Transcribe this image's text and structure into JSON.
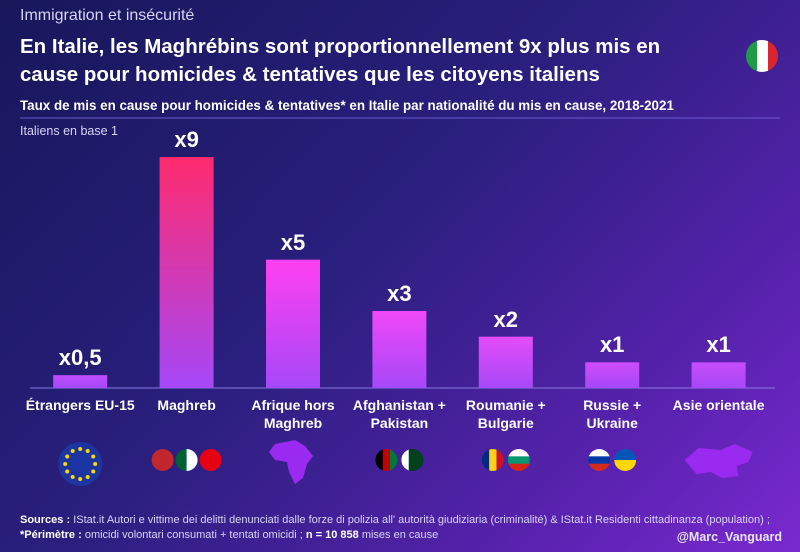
{
  "kicker": "Immigration et insécurité",
  "chart_data": {
    "type": "bar",
    "title": "En Italie, les Maghrébins sont proportionnellement 9x plus mis en cause pour homicides & tentatives que les citoyens italiens",
    "subtitle": "Taux de mis en cause pour homicides & tentatives* en Italie par nationalité du mis en cause, 2018-2021",
    "note": "Italiens en base 1",
    "categories": [
      "Étrangers EU-15",
      "Maghreb",
      "Afrique hors Maghreb",
      "Afghanistan + Pakistan",
      "Roumanie + Bulgarie",
      "Russie + Ukraine",
      "Asie orientale"
    ],
    "values": [
      0.5,
      9,
      5,
      3,
      2,
      1,
      1
    ],
    "value_labels": [
      "x0,5",
      "x9",
      "x5",
      "x3",
      "x2",
      "x1",
      "x1"
    ],
    "colors": [
      "#c04cff",
      "#ff2a6e",
      "#ff40f0",
      "#f048f8",
      "#e44cf8",
      "#d04cfa",
      "#c84cfa"
    ]
  },
  "footer": {
    "sources_label": "Sources :",
    "sources_text": "IStat.it Autori e vittime dei delitti denunciati dalle forze di polizia all' autorità giudiziaria (criminalité) & IStat.it Residenti cittadinanza (population) ;",
    "perimetre_label": "*Périmètre :",
    "perimetre_text": "omicidi volontari consumati + tentati omicidi ;",
    "n_label": "n = 10 858",
    "n_text": "mises en cause"
  },
  "credit": "@Marc_Vanguard"
}
